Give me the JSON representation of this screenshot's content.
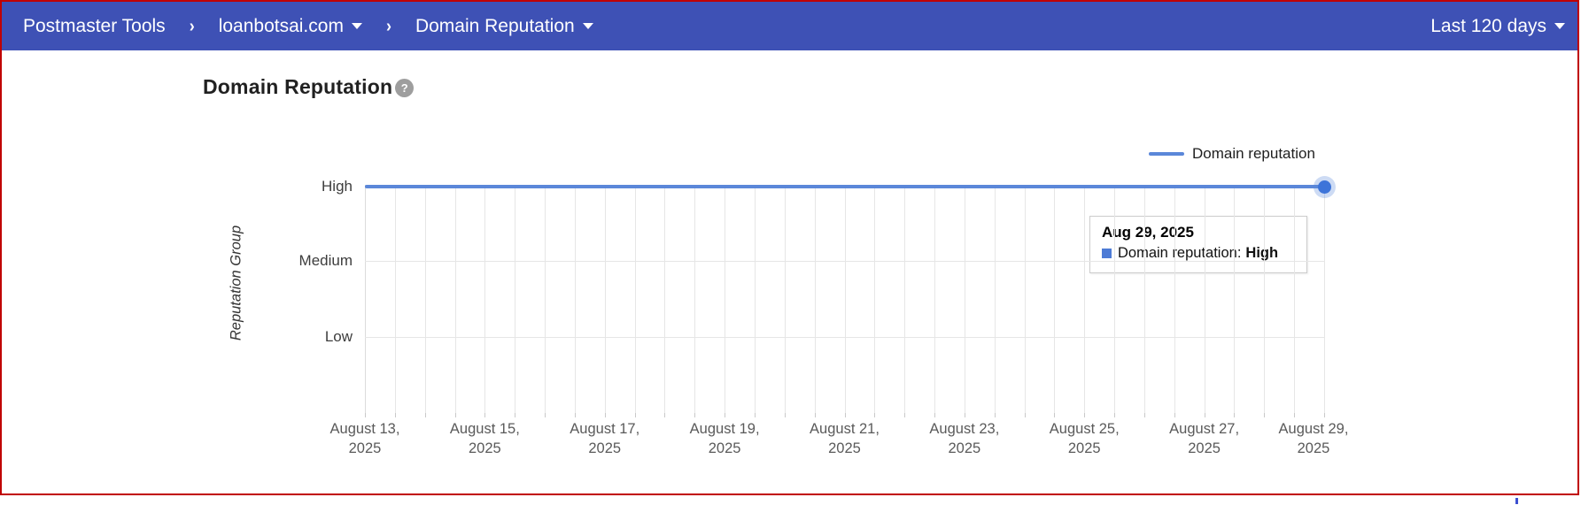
{
  "header": {
    "app_title": "Postmaster Tools",
    "separator": "›",
    "domain_selector": "loanbotsai.com",
    "report_selector": "Domain Reputation",
    "date_range": "Last 120 days",
    "bg_color": "#3e51b5"
  },
  "page": {
    "title": "Domain Reputation",
    "help_icon": "?"
  },
  "legend": {
    "label": "Domain reputation",
    "color": "#5b87d9"
  },
  "tooltip": {
    "date": "Aug 29, 2025",
    "series_label": "Domain reputation:",
    "value": "High",
    "marker_color": "#4d7bd6"
  },
  "chart_data": {
    "type": "line",
    "title": "Domain Reputation",
    "xlabel": "",
    "ylabel": "Reputation Group",
    "y_categories": [
      "Low",
      "Medium",
      "High"
    ],
    "y_tick_labels_top_to_bottom": [
      "High",
      "Medium",
      "Low"
    ],
    "x": [
      "August 13,\n2025",
      "August 15,\n2025",
      "August 17,\n2025",
      "August 19,\n2025",
      "August 21,\n2025",
      "August 23,\n2025",
      "August 25,\n2025",
      "August 27,\n2025",
      "August 29,\n2025"
    ],
    "series": [
      {
        "name": "Domain reputation",
        "values": [
          "High",
          "High",
          "High",
          "High",
          "High",
          "High",
          "High",
          "High",
          "High"
        ],
        "color": "#5b87d9",
        "endpoint_dot_color": "#3d74d9"
      }
    ],
    "grid": true,
    "grid_color": "#e6e6e6",
    "legend_position": "top-right",
    "last_point_highlighted": "Aug 29, 2025 = High"
  }
}
